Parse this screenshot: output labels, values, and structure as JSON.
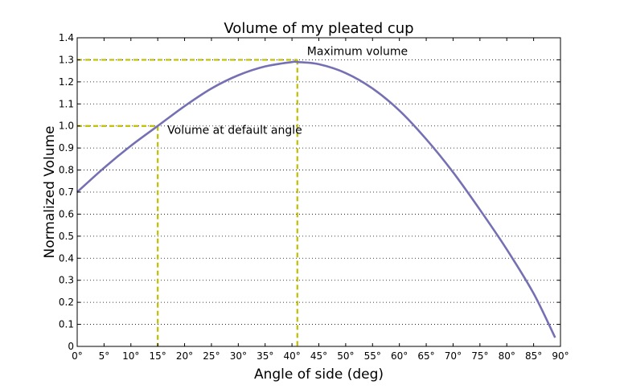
{
  "chart_data": {
    "type": "line",
    "title": "Volume of my pleated cup",
    "xlabel": "Angle of side (deg)",
    "ylabel": "Normalized Volume",
    "xlim": [
      0,
      90
    ],
    "ylim": [
      0,
      1.4
    ],
    "x_ticks": [
      0,
      5,
      10,
      15,
      20,
      25,
      30,
      35,
      40,
      45,
      50,
      55,
      60,
      65,
      70,
      75,
      80,
      85,
      90
    ],
    "x_tick_labels": [
      "0°",
      "5°",
      "10°",
      "15°",
      "20°",
      "25°",
      "30°",
      "35°",
      "40°",
      "45°",
      "50°",
      "55°",
      "60°",
      "65°",
      "70°",
      "75°",
      "80°",
      "85°",
      "90°"
    ],
    "y_ticks": [
      0,
      0.1,
      0.2,
      0.3,
      0.4,
      0.5,
      0.6,
      0.7,
      0.8,
      0.9,
      1.0,
      1.1,
      1.2,
      1.3,
      1.4
    ],
    "y_tick_labels": [
      "0",
      "0.1",
      "0.2",
      "0.3",
      "0.4",
      "0.5",
      "0.6",
      "0.7",
      "0.8",
      "0.9",
      "1.0",
      "1.1",
      "1.2",
      "1.3",
      "1.4"
    ],
    "grid": "horizontal dotted",
    "series": [
      {
        "color": "#7570b3",
        "x": [
          0,
          5,
          10,
          15,
          20,
          25,
          30,
          35,
          40,
          41,
          45,
          50,
          55,
          60,
          65,
          70,
          75,
          80,
          85,
          89
        ],
        "y": [
          0.7,
          0.81,
          0.91,
          1.0,
          1.09,
          1.17,
          1.23,
          1.27,
          1.29,
          1.29,
          1.28,
          1.24,
          1.17,
          1.07,
          0.94,
          0.79,
          0.62,
          0.44,
          0.24,
          0.04
        ]
      }
    ],
    "annotations": [
      {
        "text": "Volume at default angle",
        "x": 15,
        "y": 1.0,
        "color": "#bfbf00",
        "style": "dashed"
      },
      {
        "text": "Maximum volume",
        "x": 41,
        "y": 1.3,
        "color": "#bfbf00",
        "style": "dashed"
      }
    ]
  }
}
